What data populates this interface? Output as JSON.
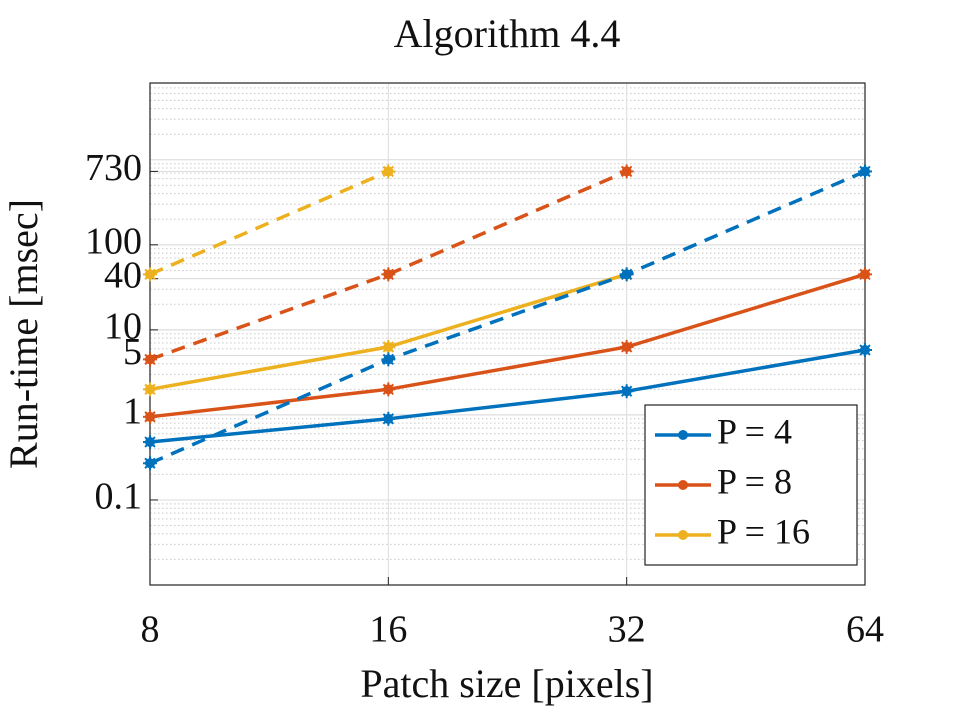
{
  "chart_data": {
    "type": "line",
    "title": "Algorithm 4.4",
    "x_label": "Patch size [pixels]",
    "y_label": "Run-time [msec]",
    "x": [
      8,
      16,
      32,
      64
    ],
    "xlim": [
      8,
      64
    ],
    "xticks": [
      8,
      16,
      32,
      64
    ],
    "xscale": "log",
    "ylim": [
      0.01,
      8000
    ],
    "yticks": [
      0.1,
      1,
      5,
      10,
      40,
      100,
      730
    ],
    "yscale": "log",
    "grid": true,
    "minor_grid": true,
    "legend": "lower right",
    "series": [
      {
        "name": "P = 4",
        "color": "#0072bd",
        "values": [
          0.48,
          0.9,
          1.9,
          5.8
        ]
      },
      {
        "name": "P = 8",
        "color": "#d95319",
        "values": [
          0.95,
          2,
          6.3,
          45
        ]
      },
      {
        "name": "P = 16",
        "color": "#edb120",
        "values": [
          2,
          6.3,
          45,
          null
        ]
      },
      {
        "color": "#0072bd",
        "dash": true,
        "values": [
          0.27,
          4.5,
          45,
          730
        ]
      },
      {
        "color": "#d95319",
        "dash": true,
        "values": [
          4.5,
          45,
          730,
          null
        ]
      },
      {
        "color": "#edb120",
        "dash": true,
        "values": [
          45,
          730,
          null,
          null
        ]
      }
    ]
  }
}
